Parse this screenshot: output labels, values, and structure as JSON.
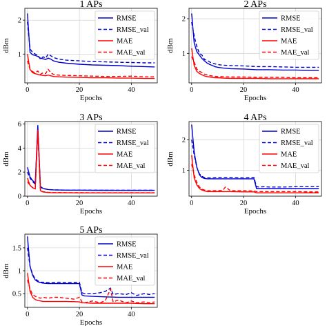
{
  "chart_data": [
    {
      "type": "line",
      "title": "1 APs",
      "xlabel": "Epochs",
      "ylabel": "dBm",
      "xlim": [
        -1,
        50
      ],
      "ylim": [
        0.15,
        2.35
      ],
      "xticks": [
        0,
        20,
        40
      ],
      "yticks": [
        1,
        2
      ],
      "grid": true,
      "legend": "top-right",
      "series": [
        {
          "name": "RMSE",
          "color": "#0000cc",
          "dash": "solid",
          "x": [
            0,
            1,
            2,
            3,
            4,
            5,
            6,
            7,
            8,
            9,
            10,
            12,
            15,
            20,
            25,
            30,
            35,
            40,
            45,
            49
          ],
          "y": [
            2.2,
            1.05,
            0.98,
            0.96,
            0.93,
            0.88,
            0.86,
            0.84,
            0.88,
            0.85,
            0.8,
            0.76,
            0.73,
            0.7,
            0.68,
            0.67,
            0.66,
            0.64,
            0.63,
            0.62
          ]
        },
        {
          "name": "RMSE_val",
          "color": "#0000cc",
          "dash": "dashed",
          "x": [
            0,
            1,
            2,
            3,
            4,
            5,
            6,
            7,
            8,
            9,
            10,
            12,
            15,
            20,
            25,
            30,
            35,
            40,
            45,
            49
          ],
          "y": [
            1.95,
            1.15,
            1.05,
            1.0,
            0.97,
            0.85,
            0.92,
            0.88,
            1.0,
            0.95,
            0.9,
            0.85,
            0.82,
            0.8,
            0.78,
            0.77,
            0.76,
            0.75,
            0.74,
            0.74
          ]
        },
        {
          "name": "MAE",
          "color": "#ff0000",
          "dash": "solid",
          "x": [
            0,
            1,
            2,
            3,
            4,
            5,
            6,
            7,
            8,
            9,
            10,
            12,
            15,
            20,
            25,
            30,
            35,
            40,
            45,
            49
          ],
          "y": [
            1.0,
            0.55,
            0.45,
            0.42,
            0.4,
            0.38,
            0.37,
            0.36,
            0.38,
            0.36,
            0.34,
            0.33,
            0.32,
            0.31,
            0.3,
            0.3,
            0.29,
            0.29,
            0.28,
            0.28
          ]
        },
        {
          "name": "MAE_val",
          "color": "#ff0000",
          "dash": "dashed",
          "x": [
            0,
            1,
            2,
            3,
            4,
            5,
            6,
            7,
            8,
            9,
            10,
            12,
            15,
            20,
            25,
            30,
            35,
            40,
            45,
            49
          ],
          "y": [
            0.8,
            0.55,
            0.48,
            0.45,
            0.5,
            0.4,
            0.45,
            0.42,
            0.55,
            0.45,
            0.4,
            0.38,
            0.37,
            0.36,
            0.35,
            0.34,
            0.34,
            0.35,
            0.33,
            0.33
          ]
        }
      ]
    },
    {
      "type": "line",
      "title": "2 APs",
      "xlabel": "Epochs",
      "ylabel": "dBm",
      "xlim": [
        -1,
        50
      ],
      "ylim": [
        0.15,
        2.3
      ],
      "xticks": [
        0,
        20,
        40
      ],
      "yticks": [
        1,
        2
      ],
      "grid": true,
      "legend": "top-right",
      "series": [
        {
          "name": "RMSE",
          "color": "#0000cc",
          "dash": "solid",
          "x": [
            0,
            1,
            2,
            3,
            4,
            5,
            6,
            7,
            8,
            9,
            10,
            12,
            15,
            20,
            25,
            30,
            35,
            40,
            45,
            49
          ],
          "y": [
            2.15,
            1.3,
            1.05,
            0.95,
            0.85,
            0.78,
            0.72,
            0.68,
            0.65,
            0.62,
            0.6,
            0.58,
            0.56,
            0.55,
            0.53,
            0.53,
            0.52,
            0.52,
            0.51,
            0.51
          ]
        },
        {
          "name": "RMSE_val",
          "color": "#0000cc",
          "dash": "dashed",
          "x": [
            0,
            1,
            2,
            3,
            4,
            5,
            6,
            7,
            8,
            9,
            10,
            12,
            15,
            20,
            25,
            30,
            35,
            40,
            45,
            49
          ],
          "y": [
            1.9,
            1.5,
            1.2,
            1.0,
            0.95,
            0.82,
            0.8,
            0.75,
            0.72,
            0.7,
            0.68,
            0.66,
            0.65,
            0.64,
            0.62,
            0.62,
            0.61,
            0.6,
            0.6,
            0.6
          ]
        },
        {
          "name": "MAE",
          "color": "#ff0000",
          "dash": "solid",
          "x": [
            0,
            1,
            2,
            3,
            4,
            5,
            6,
            7,
            8,
            9,
            10,
            12,
            15,
            20,
            25,
            30,
            35,
            40,
            45,
            49
          ],
          "y": [
            1.15,
            0.65,
            0.48,
            0.42,
            0.38,
            0.35,
            0.33,
            0.32,
            0.31,
            0.3,
            0.3,
            0.29,
            0.28,
            0.28,
            0.28,
            0.27,
            0.27,
            0.27,
            0.27,
            0.27
          ]
        },
        {
          "name": "MAE_val",
          "color": "#ff0000",
          "dash": "dashed",
          "x": [
            0,
            1,
            2,
            3,
            4,
            5,
            6,
            7,
            8,
            9,
            10,
            12,
            15,
            20,
            25,
            30,
            35,
            40,
            45,
            49
          ],
          "y": [
            0.9,
            0.75,
            0.55,
            0.48,
            0.45,
            0.4,
            0.38,
            0.36,
            0.35,
            0.34,
            0.33,
            0.33,
            0.32,
            0.32,
            0.31,
            0.31,
            0.31,
            0.3,
            0.3,
            0.3
          ]
        }
      ]
    },
    {
      "type": "line",
      "title": "3 APs",
      "xlabel": "Epochs",
      "ylabel": "dBm",
      "xlim": [
        -1,
        50
      ],
      "ylim": [
        0,
        6.2
      ],
      "xticks": [
        0,
        20,
        40
      ],
      "yticks": [
        0,
        2,
        4,
        6
      ],
      "grid": true,
      "legend": "top-right",
      "series": [
        {
          "name": "RMSE",
          "color": "#0000cc",
          "dash": "solid",
          "x": [
            0,
            1,
            2,
            3,
            4,
            5,
            6,
            8,
            10,
            15,
            20,
            25,
            30,
            35,
            40,
            45,
            49
          ],
          "y": [
            2.4,
            1.6,
            1.3,
            1.1,
            5.9,
            0.8,
            0.65,
            0.55,
            0.52,
            0.5,
            0.5,
            0.49,
            0.49,
            0.48,
            0.48,
            0.48,
            0.48
          ]
        },
        {
          "name": "RMSE_val",
          "color": "#0000cc",
          "dash": "dashed",
          "x": [
            0,
            1,
            2,
            3,
            4,
            5,
            6,
            8,
            10,
            15,
            20,
            25,
            30,
            35,
            40,
            45,
            49
          ],
          "y": [
            2.0,
            1.5,
            1.2,
            1.0,
            5.6,
            0.75,
            0.62,
            0.55,
            0.52,
            0.5,
            0.5,
            0.5,
            0.49,
            0.49,
            0.49,
            0.49,
            0.49
          ]
        },
        {
          "name": "MAE",
          "color": "#ff0000",
          "dash": "solid",
          "x": [
            0,
            1,
            2,
            3,
            4,
            5,
            6,
            8,
            10,
            15,
            20,
            25,
            30,
            35,
            40,
            45,
            49
          ],
          "y": [
            1.5,
            0.9,
            0.7,
            0.6,
            5.5,
            0.45,
            0.35,
            0.3,
            0.28,
            0.28,
            0.27,
            0.27,
            0.27,
            0.27,
            0.27,
            0.27,
            0.27
          ]
        },
        {
          "name": "MAE_val",
          "color": "#ff0000",
          "dash": "dashed",
          "x": [
            0,
            1,
            2,
            3,
            4,
            5,
            6,
            8,
            10,
            15,
            20,
            25,
            30,
            35,
            40,
            45,
            49
          ],
          "y": [
            1.2,
            0.9,
            0.7,
            0.6,
            5.3,
            0.45,
            0.38,
            0.32,
            0.3,
            0.29,
            0.29,
            0.28,
            0.28,
            0.28,
            0.28,
            0.28,
            0.28
          ]
        }
      ]
    },
    {
      "type": "line",
      "title": "4 APs",
      "xlabel": "Epochs",
      "ylabel": "dBm",
      "xlim": [
        -1,
        50
      ],
      "ylim": [
        0.15,
        2.6
      ],
      "xticks": [
        0,
        20,
        40
      ],
      "yticks": [
        1,
        2
      ],
      "grid": true,
      "legend": "top-right",
      "series": [
        {
          "name": "RMSE",
          "color": "#0000cc",
          "dash": "solid",
          "x": [
            0,
            1,
            2,
            3,
            4,
            5,
            6,
            8,
            10,
            12,
            15,
            20,
            24,
            25,
            26,
            28,
            30,
            35,
            40,
            45,
            49
          ],
          "y": [
            2.5,
            1.6,
            1.1,
            0.85,
            0.76,
            0.73,
            0.72,
            0.72,
            0.72,
            0.72,
            0.72,
            0.72,
            0.72,
            0.4,
            0.4,
            0.4,
            0.4,
            0.4,
            0.4,
            0.4,
            0.4
          ]
        },
        {
          "name": "RMSE_val",
          "color": "#0000cc",
          "dash": "dashed",
          "x": [
            0,
            1,
            2,
            3,
            4,
            5,
            6,
            8,
            10,
            12,
            15,
            20,
            24,
            25,
            26,
            28,
            30,
            35,
            40,
            45,
            49
          ],
          "y": [
            2.0,
            1.5,
            1.1,
            0.88,
            0.8,
            0.76,
            0.75,
            0.75,
            0.76,
            0.76,
            0.76,
            0.75,
            0.76,
            0.46,
            0.45,
            0.46,
            0.45,
            0.45,
            0.46,
            0.46,
            0.47
          ]
        },
        {
          "name": "MAE",
          "color": "#ff0000",
          "dash": "solid",
          "x": [
            0,
            1,
            2,
            3,
            4,
            5,
            6,
            8,
            10,
            12,
            15,
            20,
            24,
            25,
            26,
            28,
            30,
            35,
            40,
            45,
            49
          ],
          "y": [
            1.5,
            0.75,
            0.52,
            0.4,
            0.35,
            0.32,
            0.3,
            0.3,
            0.3,
            0.3,
            0.3,
            0.29,
            0.29,
            0.26,
            0.26,
            0.26,
            0.26,
            0.26,
            0.26,
            0.26,
            0.26
          ]
        },
        {
          "name": "MAE_val",
          "color": "#ff0000",
          "dash": "dashed",
          "x": [
            0,
            1,
            2,
            3,
            4,
            5,
            6,
            8,
            10,
            12,
            13,
            15,
            20,
            24,
            25,
            26,
            28,
            30,
            35,
            40,
            45,
            49
          ],
          "y": [
            1.2,
            0.85,
            0.6,
            0.45,
            0.38,
            0.35,
            0.33,
            0.33,
            0.33,
            0.34,
            0.45,
            0.33,
            0.33,
            0.32,
            0.3,
            0.3,
            0.3,
            0.3,
            0.3,
            0.3,
            0.29,
            0.29
          ]
        }
      ]
    },
    {
      "type": "line",
      "title": "5 APs",
      "xlabel": "Epochs",
      "ylabel": "dBm",
      "xlim": [
        -1,
        50
      ],
      "ylim": [
        0.2,
        1.8
      ],
      "xticks": [
        0,
        20,
        40
      ],
      "yticks": [
        0.5,
        1.0,
        1.5
      ],
      "grid": true,
      "legend": "top-right",
      "series": [
        {
          "name": "RMSE",
          "color": "#0000cc",
          "dash": "solid",
          "x": [
            0,
            1,
            2,
            3,
            4,
            5,
            6,
            8,
            10,
            12,
            15,
            20,
            21,
            22,
            25,
            30,
            35,
            40,
            45,
            49
          ],
          "y": [
            1.75,
            1.1,
            0.9,
            0.8,
            0.76,
            0.74,
            0.73,
            0.72,
            0.72,
            0.72,
            0.72,
            0.72,
            0.47,
            0.45,
            0.44,
            0.43,
            0.42,
            0.42,
            0.42,
            0.42
          ]
        },
        {
          "name": "RMSE_val",
          "color": "#0000cc",
          "dash": "dashed",
          "x": [
            0,
            1,
            2,
            3,
            4,
            5,
            6,
            8,
            10,
            12,
            15,
            20,
            21,
            22,
            25,
            28,
            30,
            32,
            33,
            35,
            38,
            40,
            42,
            45,
            47,
            49
          ],
          "y": [
            1.5,
            1.1,
            0.92,
            0.82,
            0.78,
            0.75,
            0.75,
            0.74,
            0.74,
            0.75,
            0.74,
            0.75,
            0.52,
            0.5,
            0.5,
            0.52,
            0.55,
            0.62,
            0.48,
            0.5,
            0.48,
            0.52,
            0.46,
            0.5,
            0.48,
            0.5
          ]
        },
        {
          "name": "MAE",
          "color": "#ff0000",
          "dash": "solid",
          "x": [
            0,
            1,
            2,
            3,
            4,
            5,
            6,
            8,
            10,
            12,
            15,
            20,
            21,
            22,
            25,
            30,
            35,
            40,
            45,
            49
          ],
          "y": [
            0.95,
            0.55,
            0.42,
            0.37,
            0.35,
            0.34,
            0.33,
            0.33,
            0.33,
            0.33,
            0.33,
            0.32,
            0.3,
            0.3,
            0.29,
            0.29,
            0.29,
            0.29,
            0.28,
            0.28
          ]
        },
        {
          "name": "MAE_val",
          "color": "#ff0000",
          "dash": "dashed",
          "x": [
            0,
            1,
            2,
            3,
            4,
            5,
            6,
            8,
            10,
            12,
            15,
            18,
            20,
            21,
            22,
            25,
            28,
            30,
            32,
            33,
            35,
            38,
            40,
            42,
            45,
            47,
            49
          ],
          "y": [
            0.8,
            0.6,
            0.48,
            0.44,
            0.42,
            0.4,
            0.42,
            0.4,
            0.42,
            0.42,
            0.4,
            0.38,
            0.42,
            0.32,
            0.3,
            0.34,
            0.3,
            0.35,
            0.6,
            0.32,
            0.36,
            0.3,
            0.34,
            0.3,
            0.32,
            0.3,
            0.32
          ]
        }
      ]
    }
  ]
}
